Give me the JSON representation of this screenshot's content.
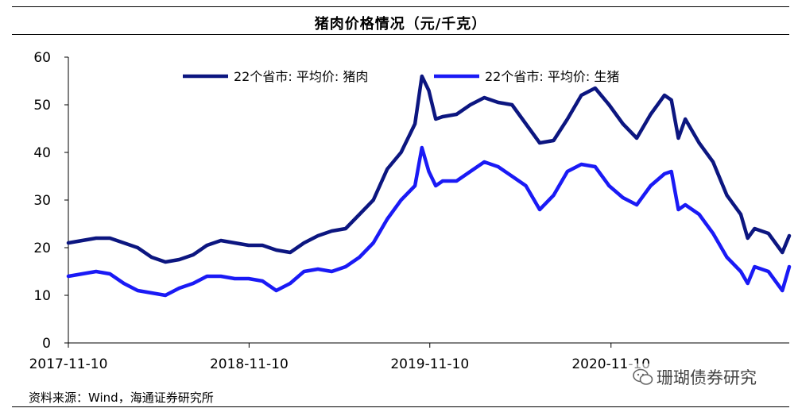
{
  "chart_data": {
    "type": "line",
    "title": "猪肉价格情况（元/千克）",
    "xlabel": "",
    "ylabel": "",
    "ylim": [
      0,
      60
    ],
    "yticks": [
      0,
      10,
      20,
      30,
      40,
      50,
      60
    ],
    "x_tick_labels": [
      "2017-11-10",
      "2018-11-10",
      "2019-11-10",
      "2020-11-10"
    ],
    "xlim": [
      "2017-11-10",
      "2021-11-05"
    ],
    "grid": false,
    "legend_position": "top",
    "series": [
      {
        "name": "22个省市: 平均价: 猪肉",
        "color": "#0c1680",
        "points": [
          [
            "2017-11-10",
            21.0
          ],
          [
            "2017-12-08",
            21.5
          ],
          [
            "2018-01-05",
            22.0
          ],
          [
            "2018-02-02",
            22.0
          ],
          [
            "2018-03-02",
            21.0
          ],
          [
            "2018-03-30",
            20.0
          ],
          [
            "2018-04-27",
            18.0
          ],
          [
            "2018-05-25",
            17.0
          ],
          [
            "2018-06-22",
            17.5
          ],
          [
            "2018-07-20",
            18.5
          ],
          [
            "2018-08-17",
            20.5
          ],
          [
            "2018-09-14",
            21.5
          ],
          [
            "2018-10-12",
            21.0
          ],
          [
            "2018-11-09",
            20.5
          ],
          [
            "2018-12-07",
            20.5
          ],
          [
            "2019-01-04",
            19.5
          ],
          [
            "2019-02-01",
            19.0
          ],
          [
            "2019-03-01",
            21.0
          ],
          [
            "2019-03-29",
            22.5
          ],
          [
            "2019-04-26",
            23.5
          ],
          [
            "2019-05-24",
            24.0
          ],
          [
            "2019-06-21",
            27.0
          ],
          [
            "2019-07-19",
            30.0
          ],
          [
            "2019-08-16",
            36.5
          ],
          [
            "2019-09-13",
            40.0
          ],
          [
            "2019-10-11",
            46.0
          ],
          [
            "2019-10-25",
            56.0
          ],
          [
            "2019-11-08",
            53.0
          ],
          [
            "2019-11-22",
            47.0
          ],
          [
            "2019-12-06",
            47.5
          ],
          [
            "2020-01-03",
            48.0
          ],
          [
            "2020-01-31",
            50.0
          ],
          [
            "2020-02-28",
            51.5
          ],
          [
            "2020-03-27",
            50.5
          ],
          [
            "2020-04-24",
            50.0
          ],
          [
            "2020-05-22",
            46.0
          ],
          [
            "2020-06-19",
            42.0
          ],
          [
            "2020-07-17",
            42.5
          ],
          [
            "2020-08-14",
            47.0
          ],
          [
            "2020-09-11",
            52.0
          ],
          [
            "2020-10-09",
            53.5
          ],
          [
            "2020-11-06",
            50.0
          ],
          [
            "2020-12-04",
            46.0
          ],
          [
            "2021-01-01",
            43.0
          ],
          [
            "2021-01-29",
            48.0
          ],
          [
            "2021-02-26",
            52.0
          ],
          [
            "2021-03-12",
            51.0
          ],
          [
            "2021-03-26",
            43.0
          ],
          [
            "2021-04-09",
            47.0
          ],
          [
            "2021-05-07",
            42.0
          ],
          [
            "2021-06-04",
            38.0
          ],
          [
            "2021-07-02",
            31.0
          ],
          [
            "2021-07-30",
            27.0
          ],
          [
            "2021-08-13",
            22.0
          ],
          [
            "2021-08-27",
            24.0
          ],
          [
            "2021-09-24",
            23.0
          ],
          [
            "2021-10-22",
            19.0
          ],
          [
            "2021-11-05",
            22.5
          ]
        ]
      },
      {
        "name": "22个省市: 平均价: 生猪",
        "color": "#1a1af5",
        "points": [
          [
            "2017-11-10",
            14.0
          ],
          [
            "2017-12-08",
            14.5
          ],
          [
            "2018-01-05",
            15.0
          ],
          [
            "2018-02-02",
            14.5
          ],
          [
            "2018-03-02",
            12.5
          ],
          [
            "2018-03-30",
            11.0
          ],
          [
            "2018-04-27",
            10.5
          ],
          [
            "2018-05-25",
            10.0
          ],
          [
            "2018-06-22",
            11.5
          ],
          [
            "2018-07-20",
            12.5
          ],
          [
            "2018-08-17",
            14.0
          ],
          [
            "2018-09-14",
            14.0
          ],
          [
            "2018-10-12",
            13.5
          ],
          [
            "2018-11-09",
            13.5
          ],
          [
            "2018-12-07",
            13.0
          ],
          [
            "2019-01-04",
            11.0
          ],
          [
            "2019-02-01",
            12.5
          ],
          [
            "2019-03-01",
            15.0
          ],
          [
            "2019-03-29",
            15.5
          ],
          [
            "2019-04-26",
            15.0
          ],
          [
            "2019-05-24",
            16.0
          ],
          [
            "2019-06-21",
            18.0
          ],
          [
            "2019-07-19",
            21.0
          ],
          [
            "2019-08-16",
            26.0
          ],
          [
            "2019-09-13",
            30.0
          ],
          [
            "2019-10-11",
            33.0
          ],
          [
            "2019-10-25",
            41.0
          ],
          [
            "2019-11-08",
            36.0
          ],
          [
            "2019-11-22",
            33.0
          ],
          [
            "2019-12-06",
            34.0
          ],
          [
            "2020-01-03",
            34.0
          ],
          [
            "2020-01-31",
            36.0
          ],
          [
            "2020-02-28",
            38.0
          ],
          [
            "2020-03-27",
            37.0
          ],
          [
            "2020-04-24",
            35.0
          ],
          [
            "2020-05-22",
            33.0
          ],
          [
            "2020-06-19",
            28.0
          ],
          [
            "2020-07-17",
            31.0
          ],
          [
            "2020-08-14",
            36.0
          ],
          [
            "2020-09-11",
            37.5
          ],
          [
            "2020-10-09",
            37.0
          ],
          [
            "2020-11-06",
            33.0
          ],
          [
            "2020-12-04",
            30.5
          ],
          [
            "2021-01-01",
            29.0
          ],
          [
            "2021-01-29",
            33.0
          ],
          [
            "2021-02-26",
            35.5
          ],
          [
            "2021-03-12",
            36.0
          ],
          [
            "2021-03-26",
            28.0
          ],
          [
            "2021-04-09",
            29.0
          ],
          [
            "2021-05-07",
            27.0
          ],
          [
            "2021-06-04",
            23.0
          ],
          [
            "2021-07-02",
            18.0
          ],
          [
            "2021-07-30",
            15.0
          ],
          [
            "2021-08-13",
            12.5
          ],
          [
            "2021-08-27",
            16.0
          ],
          [
            "2021-09-24",
            15.0
          ],
          [
            "2021-10-22",
            11.0
          ],
          [
            "2021-11-05",
            16.0
          ]
        ]
      }
    ]
  },
  "footer": {
    "source": "资料来源：Wind，海通证券研究所",
    "watermark": "珊瑚债券研究"
  }
}
